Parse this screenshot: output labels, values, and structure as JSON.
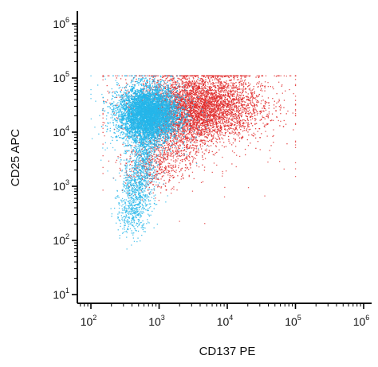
{
  "chart_data": {
    "type": "scatter",
    "title": "",
    "xlabel": "CD137 PE",
    "ylabel": "CD25 APC",
    "x_scale": "log",
    "y_scale": "log",
    "xlim": [
      40,
      1000000
    ],
    "ylim": [
      8,
      1500000
    ],
    "x_ticks": [
      {
        "base": "10",
        "exp": "2",
        "value": 100
      },
      {
        "base": "10",
        "exp": "3",
        "value": 1000
      },
      {
        "base": "10",
        "exp": "4",
        "value": 10000
      },
      {
        "base": "10",
        "exp": "5",
        "value": 100000
      },
      {
        "base": "10",
        "exp": "6",
        "value": 1000000
      }
    ],
    "y_ticks": [
      {
        "base": "10",
        "exp": "1",
        "value": 10
      },
      {
        "base": "10",
        "exp": "2",
        "value": 100
      },
      {
        "base": "10",
        "exp": "3",
        "value": 1000
      },
      {
        "base": "10",
        "exp": "4",
        "value": 10000
      },
      {
        "base": "10",
        "exp": "5",
        "value": 100000
      },
      {
        "base": "10",
        "exp": "6",
        "value": 1000000
      }
    ],
    "grid": false,
    "legend": "none",
    "series": [
      {
        "color": "#e02a2a",
        "population": {
          "center": [
            4000,
            30000
          ],
          "spread_log10": [
            0.45,
            0.32
          ],
          "tail_toward": [
            700,
            1500
          ],
          "x_extent": [
            150,
            100000
          ],
          "y_extent": [
            50,
            110000
          ]
        }
      },
      {
        "color": "#25b6ea",
        "population": {
          "center": [
            700,
            22000
          ],
          "spread_log10": [
            0.22,
            0.25
          ],
          "tail_toward": [
            400,
            200
          ],
          "x_extent": [
            100,
            5000
          ],
          "y_extent": [
            60,
            110000
          ]
        }
      }
    ]
  }
}
